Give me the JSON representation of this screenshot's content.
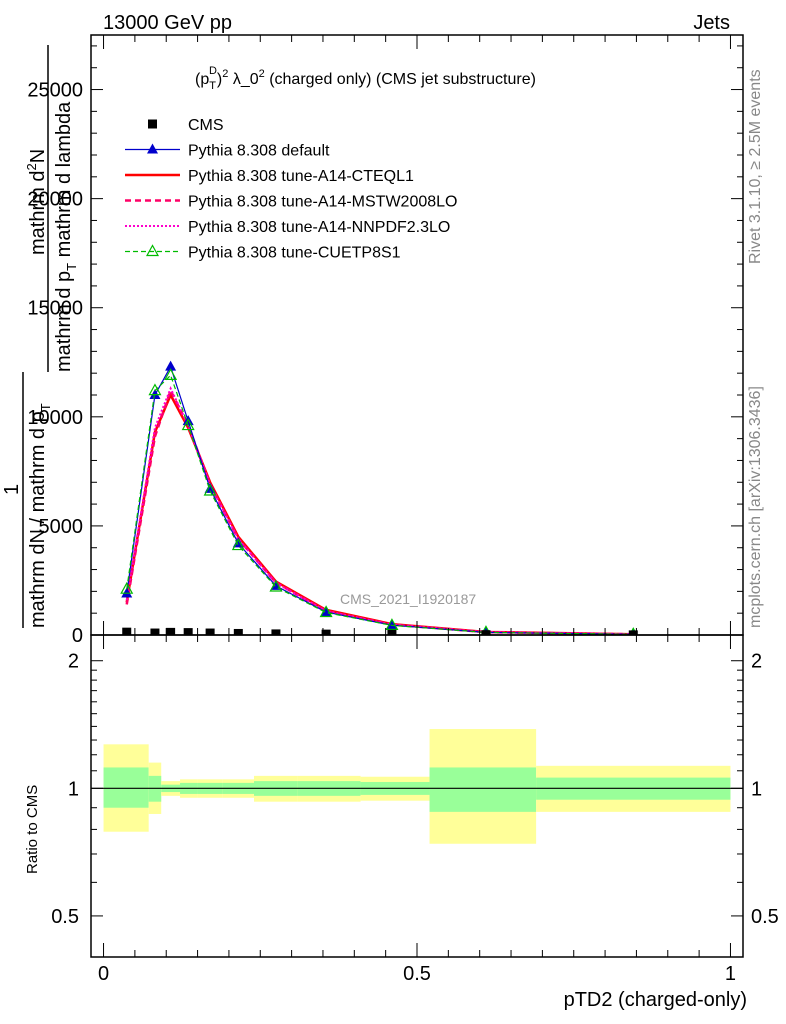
{
  "header": {
    "energy_label": "13000 GeV pp",
    "category_label": "Jets"
  },
  "side_labels": {
    "rivet": "Rivet 3.1.10, ≥ 2.5M events",
    "mcplots": "mcplots.cern.ch [arXiv:1306.3436]"
  },
  "watermark": "CMS_2021_I1920187",
  "colors": {
    "cms": "#000000",
    "default": "#0000cc",
    "cteql1": "#ff0000",
    "mstw": "#ff0066",
    "nnpdf": "#ff00cc",
    "cuetp8s1": "#00bb00",
    "band_inner": "#99ff99",
    "band_outer": "#ffff99"
  },
  "chart_data": [
    {
      "type": "line",
      "title": "(p_T^D)^2 λ_0^2 (charged only) (CMS jet substructure)",
      "title_parts": {
        "open": "(p",
        "sub": "T",
        "sup": "D",
        "mid": ")",
        "sup2": "2",
        "rest1": " λ_0",
        "sup3": "2",
        "rest2": " (charged only) (CMS jet substructure)"
      },
      "ylabel_lines": [
        "mathrm d",
        "2",
        "N",
        "1",
        "mathrm dN / mathrm d p",
        "T",
        "mathrm d p",
        "T",
        "mathrm d lambda"
      ],
      "ylabel": {
        "numerator_a": "mathrm d",
        "numerator_sup": "2",
        "numerator_b": "N",
        "denominator_a": "mathrm d p",
        "denominator_sub": "T",
        "denominator_b": " mathrm d lambda",
        "prefactor": "1",
        "prefactor_den_a": "mathrm dN / mathrm d p",
        "prefactor_den_sub": "T"
      },
      "xlim": [
        -0.02,
        1.02
      ],
      "ylim": [
        0,
        27500
      ],
      "yticks": [
        0,
        5000,
        10000,
        15000,
        20000,
        25000
      ],
      "ytick_labels": [
        "0",
        "5000",
        "10000",
        "15000",
        "20000",
        "25000"
      ],
      "grid": false,
      "legend_position": "top-left",
      "x": [
        0.037,
        0.082,
        0.107,
        0.135,
        0.17,
        0.215,
        0.275,
        0.355,
        0.46,
        0.61,
        0.845
      ],
      "series": [
        {
          "name": "CMS",
          "key": "cms",
          "marker": "square",
          "values": [
            130,
            90,
            120,
            110,
            90,
            70,
            50,
            40,
            30,
            15,
            5
          ]
        },
        {
          "name": "Pythia 8.308 default",
          "key": "default",
          "marker": "triangle",
          "values": [
            1900,
            11000,
            12300,
            9800,
            6700,
            4200,
            2250,
            1050,
            450,
            120,
            30
          ]
        },
        {
          "name": "Pythia 8.308 tune-A14-CTEQL1",
          "key": "cteql1",
          "marker": "none",
          "values": [
            1500,
            9300,
            11000,
            9500,
            7000,
            4500,
            2450,
            1150,
            500,
            140,
            35
          ]
        },
        {
          "name": "Pythia 8.308 tune-A14-MSTW2008LO",
          "key": "mstw",
          "marker": "none",
          "values": [
            1400,
            9100,
            11200,
            9600,
            6900,
            4400,
            2400,
            1100,
            480,
            130,
            32
          ]
        },
        {
          "name": "Pythia 8.308 tune-A14-NNPDF2.3LO",
          "key": "nnpdf",
          "marker": "none",
          "values": [
            1600,
            9500,
            11300,
            9600,
            6900,
            4400,
            2380,
            1100,
            470,
            130,
            32
          ]
        },
        {
          "name": "Pythia 8.308 tune-CUETP8S1",
          "key": "cuetp8s1",
          "marker": "triangle-open",
          "values": [
            2100,
            11200,
            11900,
            9600,
            6600,
            4100,
            2200,
            1030,
            440,
            118,
            30
          ]
        }
      ]
    },
    {
      "type": "area",
      "ylabel": "Ratio to CMS",
      "xlabel": "pTD2 (charged-only)",
      "xlim": [
        -0.02,
        1.02
      ],
      "ylim": [
        0.4,
        2.3
      ],
      "ylog": true,
      "yticks": [
        0.5,
        1,
        2
      ],
      "ytick_labels": [
        "0.5",
        "1",
        "2"
      ],
      "xticks": [
        0,
        0.5,
        1
      ],
      "xtick_labels": [
        "0",
        "0.5",
        "1"
      ],
      "reference_line": 1,
      "bins": [
        {
          "lo": 0.0,
          "hi": 0.072,
          "inner": [
            0.9,
            1.12
          ],
          "outer": [
            0.79,
            1.27
          ]
        },
        {
          "lo": 0.072,
          "hi": 0.092,
          "inner": [
            0.93,
            1.07
          ],
          "outer": [
            0.87,
            1.15
          ]
        },
        {
          "lo": 0.092,
          "hi": 0.122,
          "inner": [
            0.98,
            1.02
          ],
          "outer": [
            0.96,
            1.04
          ]
        },
        {
          "lo": 0.122,
          "hi": 0.15,
          "inner": [
            0.97,
            1.03
          ],
          "outer": [
            0.95,
            1.05
          ]
        },
        {
          "lo": 0.15,
          "hi": 0.19,
          "inner": [
            0.97,
            1.03
          ],
          "outer": [
            0.95,
            1.05
          ]
        },
        {
          "lo": 0.19,
          "hi": 0.24,
          "inner": [
            0.97,
            1.03
          ],
          "outer": [
            0.95,
            1.05
          ]
        },
        {
          "lo": 0.24,
          "hi": 0.31,
          "inner": [
            0.96,
            1.04
          ],
          "outer": [
            0.93,
            1.07
          ]
        },
        {
          "lo": 0.31,
          "hi": 0.41,
          "inner": [
            0.96,
            1.04
          ],
          "outer": [
            0.93,
            1.07
          ]
        },
        {
          "lo": 0.41,
          "hi": 0.52,
          "inner": [
            0.965,
            1.035
          ],
          "outer": [
            0.935,
            1.065
          ]
        },
        {
          "lo": 0.52,
          "hi": 0.69,
          "inner": [
            0.88,
            1.12
          ],
          "outer": [
            0.74,
            1.38
          ]
        },
        {
          "lo": 0.69,
          "hi": 1.0,
          "inner": [
            0.94,
            1.06
          ],
          "outer": [
            0.88,
            1.13
          ]
        }
      ]
    }
  ]
}
